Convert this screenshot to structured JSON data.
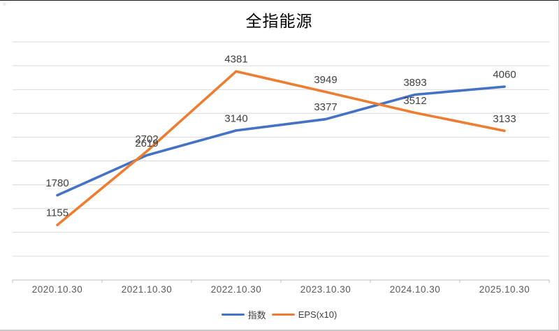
{
  "chart": {
    "title": "全指能源"
  },
  "chart_data": {
    "type": "line",
    "title": "全指能源",
    "categories": [
      "2020.10.30",
      "2021.10.30",
      "2022.10.30",
      "2023.10.30",
      "2024.10.30",
      "2025.10.30"
    ],
    "series": [
      {
        "name": "指数",
        "color": "#4472C4",
        "values": [
          1780,
          2619,
          3140,
          3377,
          3893,
          4060
        ]
      },
      {
        "name": "EPS(x10)",
        "color": "#ED7D31",
        "values": [
          1155,
          2702,
          4381,
          3949,
          3512,
          3133
        ]
      }
    ],
    "data_labels": true,
    "xlabel": "",
    "ylabel": "",
    "ylim": [
      0,
      5000
    ],
    "grid_step": 500,
    "grid": "horizontal",
    "y_axis_labels_shown": false,
    "legend_position": "bottom",
    "colors": {
      "gridline": "#D9D9D9",
      "axis_line": "#BFBFBF",
      "data_label": "#404040",
      "tick_label": "#595959",
      "title": "#000000",
      "background": "#FFFFFF"
    }
  }
}
